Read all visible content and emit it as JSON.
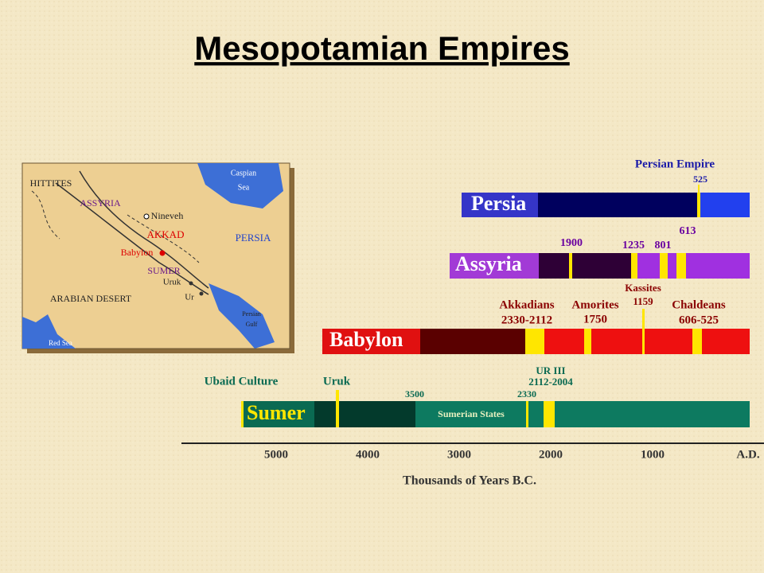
{
  "title": "Mesopotamian Empires",
  "map": {
    "labels": [
      "HITTITES",
      "Caspian",
      "Sea",
      "ASSYRIA",
      "Nineveh",
      "AKKAD",
      "PERSIA",
      "Babylon",
      "SUMER",
      "Uruk",
      "ARABIAN DESERT",
      "Ur",
      "Persian",
      "Gulf",
      "Red Sea"
    ]
  },
  "timeline": {
    "rows": [
      {
        "name": "Persia",
        "annotations": [
          "Persian Empire",
          "525"
        ]
      },
      {
        "name": "Assyria",
        "annotations": [
          "1900",
          "1235",
          "801",
          "613"
        ]
      },
      {
        "name": "Babylon",
        "annotations": [
          "Akkadians",
          "2330-2112",
          "Amorites",
          "1750",
          "Kassites",
          "1159",
          "Chaldeans",
          "606-525"
        ]
      },
      {
        "name": "Sumer",
        "annotations": [
          "Ubaid Culture",
          "Uruk",
          "3500",
          "2330",
          "UR III",
          "2112-2004",
          "Sumerian States"
        ]
      }
    ],
    "axis": {
      "ticks": [
        "5000",
        "4000",
        "3000",
        "2000",
        "1000",
        "A.D."
      ],
      "label": "Thousands of Years B.C."
    }
  }
}
